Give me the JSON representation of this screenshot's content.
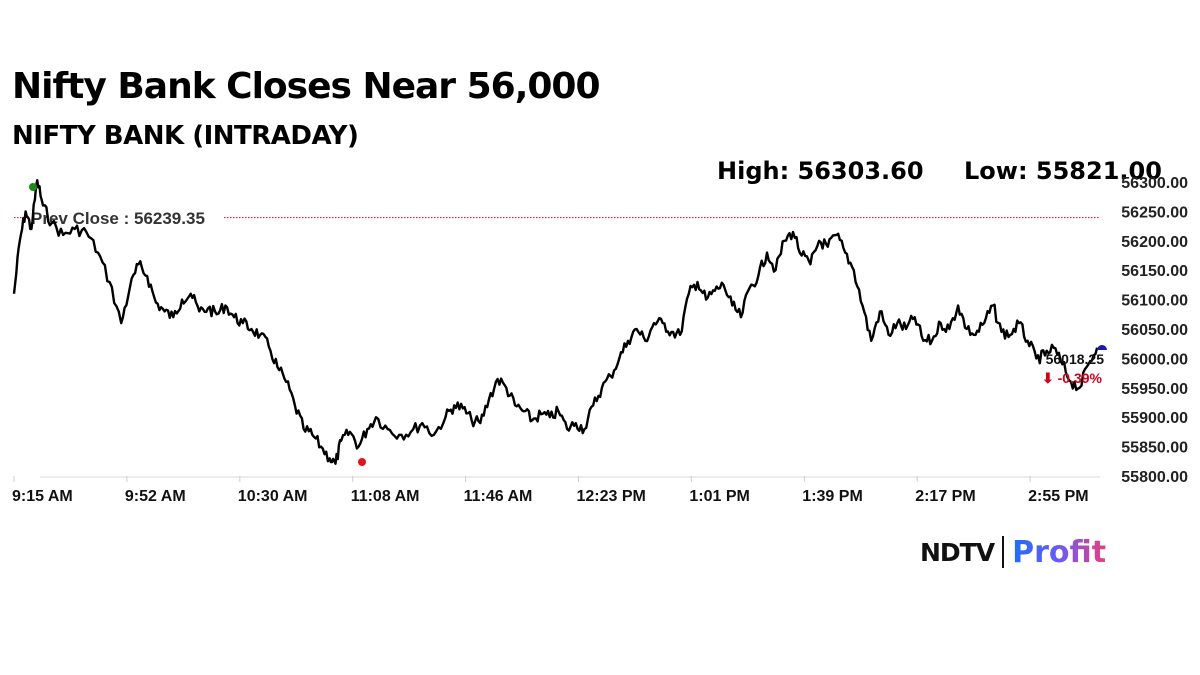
{
  "header": {
    "title": "Nifty Bank Closes Near 56,000",
    "subtitle": "NIFTY BANK (INTRADAY)",
    "high_label": "High: 56303.60",
    "low_label": "Low: 55821.00"
  },
  "brand": {
    "ndtv": "NDTV",
    "profit": "Profit",
    "ndtv_dot_color": "#e2231a"
  },
  "chart_data": {
    "type": "line",
    "title": "NIFTY BANK (INTRADAY)",
    "xlabel": "",
    "ylabel": "",
    "ylim": [
      55800,
      56300
    ],
    "grid": false,
    "legend": "none",
    "x_tick_labels": [
      "9:15 AM",
      "9:52 AM",
      "10:30 AM",
      "11:08 AM",
      "11:46 AM",
      "12:23 PM",
      "1:01 PM",
      "1:39 PM",
      "2:17 PM",
      "2:55 PM"
    ],
    "y_tick_labels": [
      "56300.00",
      "56250.00",
      "56200.00",
      "56150.00",
      "56100.00",
      "56050.00",
      "56000.00",
      "55950.00",
      "55900.00",
      "55850.00",
      "55800.00"
    ],
    "y_ticks": [
      56300,
      56250,
      56200,
      56150,
      56100,
      56050,
      56000,
      55950,
      55900,
      55850,
      55800
    ],
    "high": 56303.6,
    "low": 55821.0,
    "prev_close": 56239.35,
    "prev_close_label": "Prev Close : 56239.35",
    "last_value": 56018.25,
    "last_value_label": "56018.25",
    "change_pct": -0.39,
    "change_label": "⬇ -0.39%",
    "colors": {
      "line": "#000000",
      "prev_close": "#d0021b",
      "high_marker": "#1a8a1a",
      "low_marker": "#e0151b",
      "last_marker": "#1a1aa8",
      "change": "#d0021b"
    },
    "series": [
      {
        "name": "NIFTY BANK",
        "x": [
          "9:15",
          "9:17",
          "9:19",
          "9:21",
          "9:23",
          "9:25",
          "9:28",
          "9:32",
          "9:36",
          "9:40",
          "9:44",
          "9:48",
          "9:52",
          "9:55",
          "9:58",
          "10:01",
          "10:04",
          "10:07",
          "10:10",
          "10:13",
          "10:16",
          "10:19",
          "10:22",
          "10:25",
          "10:28",
          "10:31",
          "10:34",
          "10:37",
          "10:40",
          "10:43",
          "10:46",
          "10:49",
          "10:52",
          "10:55",
          "10:58",
          "11:01",
          "11:04",
          "11:06",
          "11:08",
          "11:11",
          "11:14",
          "11:17",
          "11:20",
          "11:24",
          "11:28",
          "11:32",
          "11:36",
          "11:40",
          "11:44",
          "11:47",
          "11:50",
          "11:53",
          "11:56",
          "11:59",
          "12:02",
          "12:05",
          "12:08",
          "12:11",
          "12:14",
          "12:17",
          "12:20",
          "12:23",
          "12:26",
          "12:29",
          "12:32",
          "12:35",
          "12:38",
          "12:41",
          "12:44",
          "12:47",
          "12:50",
          "12:53",
          "12:56",
          "12:59",
          "13:02",
          "13:05",
          "13:08",
          "13:11",
          "13:14",
          "13:17",
          "13:20",
          "13:23",
          "13:26",
          "13:29",
          "13:32",
          "13:35",
          "13:38",
          "13:41",
          "13:44",
          "13:47",
          "13:50",
          "13:53",
          "13:56",
          "13:59",
          "14:02",
          "14:05",
          "14:08",
          "14:11",
          "14:14",
          "14:17",
          "14:20",
          "14:23",
          "14:26",
          "14:29",
          "14:32",
          "14:35",
          "14:38",
          "14:41",
          "14:44",
          "14:47",
          "14:50",
          "14:53",
          "14:56",
          "14:59",
          "15:02",
          "15:05",
          "15:08",
          "15:11",
          "15:14",
          "15:17",
          "15:20",
          "15:23",
          "15:26",
          "15:29"
        ],
        "values": [
          56110,
          56200,
          56250,
          56220,
          56303,
          56260,
          56230,
          56210,
          56220,
          56215,
          56180,
          56130,
          56060,
          56120,
          56160,
          56140,
          56095,
          56080,
          56070,
          56100,
          56110,
          56080,
          56085,
          56075,
          56090,
          56070,
          56060,
          56050,
          56040,
          56020,
          55985,
          55960,
          55920,
          55880,
          55870,
          55850,
          55830,
          55821,
          55860,
          55875,
          55850,
          55880,
          55900,
          55880,
          55870,
          55875,
          55890,
          55870,
          55900,
          55920,
          55915,
          55895,
          55890,
          55930,
          55965,
          55950,
          55920,
          55910,
          55895,
          55905,
          55900,
          55910,
          55880,
          55890,
          55880,
          55920,
          55950,
          55970,
          56000,
          56030,
          56050,
          56030,
          56060,
          56060,
          56045,
          56040,
          56110,
          56130,
          56100,
          56115,
          56125,
          56090,
          56070,
          56120,
          56140,
          56180,
          56150,
          56200,
          56215,
          56175,
          56160,
          56200,
          56190,
          56210,
          56180,
          56150,
          56090,
          56030,
          56080,
          56040,
          56060,
          56050,
          56070,
          56030,
          56030,
          56060,
          56050,
          56090,
          56050,
          56040,
          56060,
          56090,
          56045,
          56040,
          56060,
          56030,
          56000,
          56005,
          56018,
          55990,
          55960,
          55950,
          55990,
          56018.25
        ]
      }
    ]
  }
}
